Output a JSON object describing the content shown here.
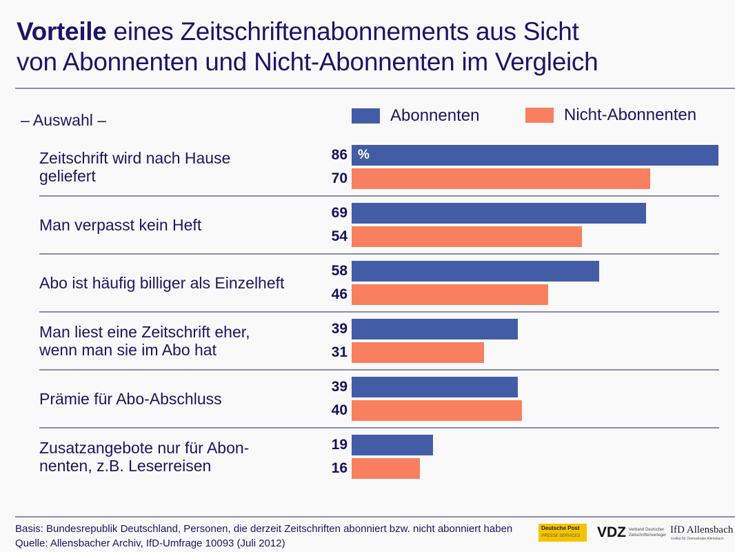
{
  "title": {
    "bold": "Vorteile",
    "rest_line1": " eines Zeitschriftenabonnements aus Sicht",
    "line2": "von Abonnenten und Nicht-Abonnenten im Vergleich"
  },
  "subtitle": "– Auswahl –",
  "colors": {
    "abonnenten": "#435ca6",
    "nicht_abonnenten": "#f8805e",
    "text": "#1a1560",
    "rule": "#8a8aa8"
  },
  "legend": [
    {
      "label": "Abonnenten"
    },
    {
      "label": "Nicht-Abonnenten"
    }
  ],
  "unit_label": "%",
  "footnotes": {
    "basis": "Basis: Bundesrepublik Deutschland, Personen, die derzeit Zeitschriften abonniert bzw. nicht abonniert haben",
    "quelle": "Quelle: Allensbacher Archiv, IfD-Umfrage 10093 (Juli 2012)"
  },
  "logos": {
    "deutsche_post": "Deutsche Post",
    "deutsche_post_sub": "PRESSE SERVICES",
    "vdz": "VDZ",
    "vdz_sub_1": "Verband Deutscher",
    "vdz_sub_2": "Zeitschriftenverleger",
    "ifd": "IfD Allensbach",
    "ifd_sub": "Institut für Demoskopie Allensbach"
  },
  "chart_data": {
    "type": "bar",
    "orientation": "horizontal",
    "title": "Vorteile eines Zeitschriftenabonnements aus Sicht von Abonnenten und Nicht-Abonnenten im Vergleich",
    "subtitle": "– Auswahl –",
    "xlabel": "",
    "ylabel": "",
    "unit": "%",
    "xlim": [
      0,
      86
    ],
    "grid": false,
    "legend_position": "top-right",
    "categories": [
      [
        "Zeitschrift wird nach Hause",
        "geliefert"
      ],
      [
        "Man verpasst kein Heft"
      ],
      [
        "Abo ist häufig billiger als Einzelheft"
      ],
      [
        "Man liest eine Zeitschrift eher,",
        "wenn man sie im Abo hat"
      ],
      [
        "Prämie für Abo-Abschluss"
      ],
      [
        "Zusatzangebote nur für Abon-",
        "nenten, z.B. Leserreisen"
      ]
    ],
    "series": [
      {
        "name": "Abonnenten",
        "values": [
          86,
          69,
          58,
          39,
          39,
          19
        ]
      },
      {
        "name": "Nicht-Abonnenten",
        "values": [
          70,
          54,
          46,
          31,
          40,
          16
        ]
      }
    ]
  }
}
